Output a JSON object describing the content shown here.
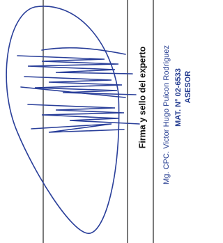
{
  "document": {
    "signature_label": "Firma y sello del experto",
    "stamp": {
      "name": "Mg. CPC. Victor Hugo Puicon Rodriguez",
      "registration": "MAT. N° 02-6533",
      "role": "ASESOR"
    }
  }
}
